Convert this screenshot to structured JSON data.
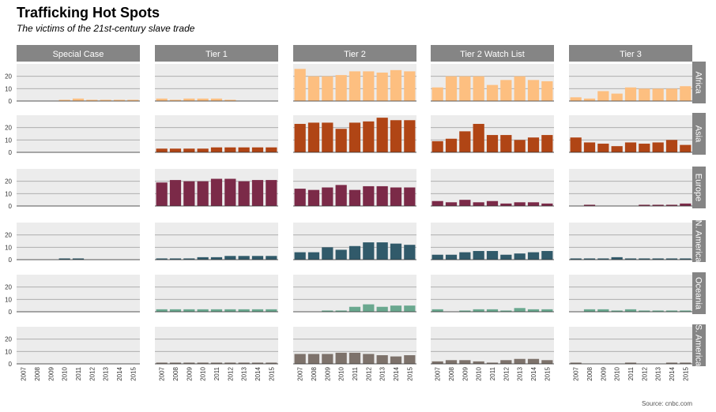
{
  "chart_data": {
    "type": "bar",
    "title": "Trafficking Hot Spots",
    "subtitle": "The victims of the 21st-century slave trade",
    "source": "Source: cnbc.com",
    "x": [
      2007,
      2008,
      2009,
      2010,
      2011,
      2012,
      2013,
      2014,
      2015
    ],
    "x_tick_labels": [
      "2007",
      "2008",
      "2009",
      "2010",
      "2011",
      "2012",
      "2013",
      "2014",
      "2015"
    ],
    "ylim": [
      0,
      30
    ],
    "y_ticks": [
      0,
      10,
      20
    ],
    "grid": true,
    "columns": [
      "Special Case",
      "Tier 1",
      "Tier 2",
      "Tier 2 Watch List",
      "Tier 3"
    ],
    "rows": [
      {
        "name": "Africa",
        "color": "#fdbf80",
        "values": {
          "Special Case": [
            null,
            null,
            null,
            1,
            2,
            1,
            1,
            1,
            1
          ],
          "Tier 1": [
            2,
            1,
            2,
            2,
            2,
            1,
            null,
            null,
            null
          ],
          "Tier 2": [
            26,
            20,
            20,
            21,
            24,
            24,
            23,
            25,
            24
          ],
          "Tier 2 Watch List": [
            11,
            20,
            20,
            20,
            13,
            17,
            20,
            17,
            16
          ],
          "Tier 3": [
            3,
            2,
            8,
            6,
            11,
            10,
            10,
            10,
            12
          ]
        }
      },
      {
        "name": "Asia",
        "color": "#b04515",
        "values": {
          "Special Case": [
            null,
            null,
            null,
            null,
            null,
            null,
            null,
            null,
            null
          ],
          "Tier 1": [
            3,
            3,
            3,
            3,
            4,
            4,
            4,
            4,
            4
          ],
          "Tier 2": [
            23,
            24,
            24,
            19,
            24,
            25,
            28,
            26,
            26
          ],
          "Tier 2 Watch List": [
            9,
            11,
            17,
            23,
            14,
            14,
            10,
            12,
            14
          ],
          "Tier 3": [
            12,
            8,
            7,
            5,
            8,
            7,
            8,
            10,
            6
          ]
        }
      },
      {
        "name": "Europe",
        "color": "#7b2a48",
        "values": {
          "Special Case": [
            null,
            null,
            null,
            null,
            null,
            null,
            null,
            null,
            null
          ],
          "Tier 1": [
            19,
            21,
            20,
            20,
            22,
            22,
            20,
            21,
            21
          ],
          "Tier 2": [
            14,
            13,
            15,
            17,
            13,
            16,
            16,
            15,
            15
          ],
          "Tier 2 Watch List": [
            4,
            3,
            5,
            3,
            4,
            2,
            3,
            3,
            2
          ],
          "Tier 3": [
            null,
            1,
            null,
            null,
            null,
            1,
            1,
            1,
            2
          ]
        }
      },
      {
        "name": "N. America",
        "color": "#315a6a",
        "values": {
          "Special Case": [
            null,
            null,
            null,
            1,
            1,
            null,
            null,
            null,
            null
          ],
          "Tier 1": [
            1,
            1,
            1,
            2,
            2,
            3,
            3,
            3,
            3
          ],
          "Tier 2": [
            6,
            6,
            10,
            8,
            11,
            14,
            14,
            13,
            12
          ],
          "Tier 2 Watch List": [
            4,
            4,
            6,
            7,
            7,
            4,
            5,
            6,
            7
          ],
          "Tier 3": [
            1,
            1,
            1,
            2,
            1,
            1,
            1,
            1,
            1
          ]
        }
      },
      {
        "name": "Oceania",
        "color": "#6aa88f",
        "values": {
          "Special Case": [
            null,
            null,
            null,
            null,
            null,
            null,
            null,
            null,
            null
          ],
          "Tier 1": [
            2,
            2,
            2,
            2,
            2,
            2,
            2,
            2,
            2
          ],
          "Tier 2": [
            null,
            null,
            1,
            1,
            4,
            6,
            4,
            5,
            5
          ],
          "Tier 2 Watch List": [
            2,
            null,
            1,
            2,
            2,
            1,
            3,
            2,
            2
          ],
          "Tier 3": [
            null,
            2,
            2,
            1,
            2,
            1,
            1,
            1,
            1
          ]
        }
      },
      {
        "name": "S. America",
        "color": "#7d726b",
        "values": {
          "Special Case": [
            null,
            null,
            null,
            null,
            null,
            null,
            null,
            null,
            null
          ],
          "Tier 1": [
            1,
            1,
            1,
            1,
            1,
            1,
            1,
            1,
            1
          ],
          "Tier 2": [
            8,
            8,
            8,
            9,
            9,
            8,
            7,
            6,
            7
          ],
          "Tier 2 Watch List": [
            2,
            3,
            3,
            2,
            1,
            3,
            4,
            4,
            3
          ],
          "Tier 3": [
            1,
            null,
            null,
            null,
            1,
            null,
            null,
            1,
            1
          ]
        }
      }
    ]
  }
}
